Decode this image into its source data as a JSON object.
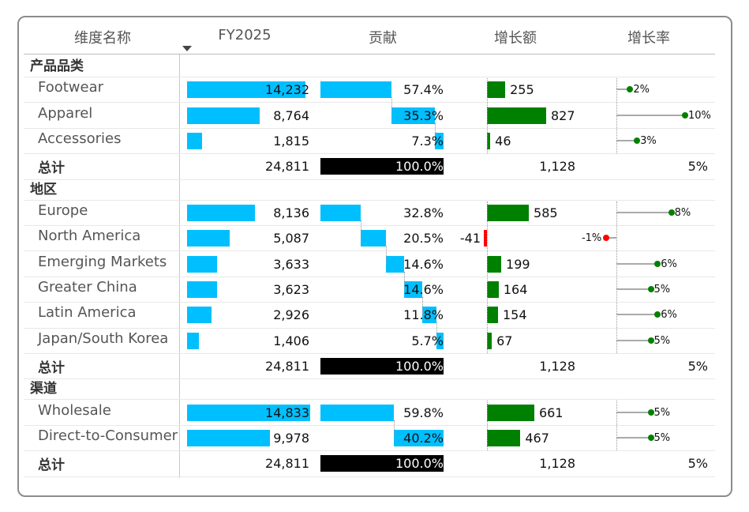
{
  "headers": {
    "name": "维度名称",
    "fy": "FY2025",
    "contribution": "贡献",
    "growth": "增长额",
    "growth_rate": "增长率"
  },
  "colors": {
    "bar": "#00bfff",
    "total_bar": "#000000",
    "positive": "#008000",
    "negative": "#ff0000",
    "stem": "#aaaaaa"
  },
  "chart_data": {
    "type": "table",
    "title": "",
    "scale": {
      "fy_max": 14833,
      "contribution_max_pct": 59.8,
      "growth_max": 827,
      "growth_rate_max_pct": 10
    },
    "groups": [
      {
        "name": "产品品类",
        "rows": [
          {
            "label": "Footwear",
            "fy": 14232,
            "fy_text": "14,232",
            "contrib": 57.4,
            "contrib_text": "57.4%",
            "growth": 255,
            "growth_text": "255",
            "rate": 2,
            "rate_text": "2%"
          },
          {
            "label": "Apparel",
            "fy": 8764,
            "fy_text": "8,764",
            "contrib": 35.3,
            "contrib_text": "35.3%",
            "growth": 827,
            "growth_text": "827",
            "rate": 10,
            "rate_text": "10%"
          },
          {
            "label": "Accessories",
            "fy": 1815,
            "fy_text": "1,815",
            "contrib": 7.3,
            "contrib_text": "7.3%",
            "growth": 46,
            "growth_text": "46",
            "rate": 3,
            "rate_text": "3%"
          }
        ],
        "total": {
          "label": "总计",
          "fy_text": "24,811",
          "contrib_text": "100.0%",
          "growth_text": "1,128",
          "rate_text": "5%"
        }
      },
      {
        "name": "地区",
        "rows": [
          {
            "label": "Europe",
            "fy": 8136,
            "fy_text": "8,136",
            "contrib": 32.8,
            "contrib_text": "32.8%",
            "growth": 585,
            "growth_text": "585",
            "rate": 8,
            "rate_text": "8%"
          },
          {
            "label": "North America",
            "fy": 5087,
            "fy_text": "5,087",
            "contrib": 20.5,
            "contrib_text": "20.5%",
            "growth": -41,
            "growth_text": "-41",
            "rate": -1,
            "rate_text": "-1%"
          },
          {
            "label": "Emerging Markets",
            "fy": 3633,
            "fy_text": "3,633",
            "contrib": 14.6,
            "contrib_text": "14.6%",
            "growth": 199,
            "growth_text": "199",
            "rate": 6,
            "rate_text": "6%"
          },
          {
            "label": "Greater China",
            "fy": 3623,
            "fy_text": "3,623",
            "contrib": 14.6,
            "contrib_text": "14.6%",
            "growth": 164,
            "growth_text": "164",
            "rate": 5,
            "rate_text": "5%"
          },
          {
            "label": "Latin America",
            "fy": 2926,
            "fy_text": "2,926",
            "contrib": 11.8,
            "contrib_text": "11.8%",
            "growth": 154,
            "growth_text": "154",
            "rate": 6,
            "rate_text": "6%"
          },
          {
            "label": "Japan/South Korea",
            "fy": 1406,
            "fy_text": "1,406",
            "contrib": 5.7,
            "contrib_text": "5.7%",
            "growth": 67,
            "growth_text": "67",
            "rate": 5,
            "rate_text": "5%"
          }
        ],
        "total": {
          "label": "总计",
          "fy_text": "24,811",
          "contrib_text": "100.0%",
          "growth_text": "1,128",
          "rate_text": "5%"
        }
      },
      {
        "name": "渠道",
        "rows": [
          {
            "label": "Wholesale",
            "fy": 14833,
            "fy_text": "14,833",
            "contrib": 59.8,
            "contrib_text": "59.8%",
            "growth": 661,
            "growth_text": "661",
            "rate": 5,
            "rate_text": "5%"
          },
          {
            "label": "Direct-to-Consumer",
            "fy": 9978,
            "fy_text": "9,978",
            "contrib": 40.2,
            "contrib_text": "40.2%",
            "growth": 467,
            "growth_text": "467",
            "rate": 5,
            "rate_text": "5%"
          }
        ],
        "total": {
          "label": "总计",
          "fy_text": "24,811",
          "contrib_text": "100.0%",
          "growth_text": "1,128",
          "rate_text": "5%"
        }
      }
    ]
  }
}
